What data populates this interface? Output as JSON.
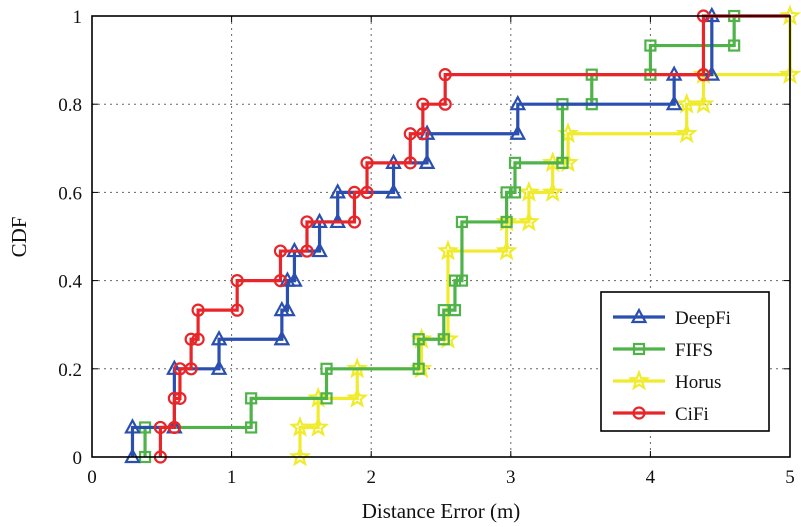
{
  "chart_data": {
    "type": "line",
    "xlabel": "Distance Error (m)",
    "ylabel": "CDF",
    "xlim": [
      0,
      5
    ],
    "ylim": [
      0,
      1
    ],
    "x_ticks": [
      "0",
      "1",
      "2",
      "3",
      "4",
      "5"
    ],
    "y_ticks": [
      "0",
      "0.2",
      "0.4",
      "0.6",
      "0.8",
      "1"
    ],
    "grid": true,
    "legend_position": "bottom-right",
    "series": [
      {
        "name": "DeepFi",
        "color": "#2a4faf",
        "marker": "triangle",
        "x": [
          0.29,
          0.59,
          0.91,
          1.36,
          1.4,
          1.45,
          1.63,
          1.76,
          2.16,
          2.4,
          3.05,
          4.17,
          4.44
        ],
        "y": [
          0.067,
          0.2,
          0.267,
          0.333,
          0.4,
          0.467,
          0.533,
          0.6,
          0.667,
          0.733,
          0.8,
          0.867,
          1.0
        ]
      },
      {
        "name": "FIFS",
        "color": "#4fb34a",
        "marker": "square",
        "x": [
          0.38,
          1.14,
          1.68,
          2.34,
          2.52,
          2.6,
          2.65,
          2.97,
          3.03,
          3.37,
          3.58,
          4.0,
          4.6
        ],
        "y": [
          0.067,
          0.133,
          0.2,
          0.267,
          0.333,
          0.4,
          0.533,
          0.6,
          0.667,
          0.8,
          0.867,
          0.933,
          1.0
        ]
      },
      {
        "name": "Horus",
        "color": "#f0eb2c",
        "marker": "star",
        "x": [
          1.49,
          1.62,
          1.9,
          2.36,
          2.55,
          2.97,
          3.13,
          3.3,
          3.41,
          4.26,
          4.38,
          5.0
        ],
        "y": [
          0.067,
          0.133,
          0.2,
          0.267,
          0.467,
          0.533,
          0.6,
          0.667,
          0.733,
          0.8,
          0.867,
          1.0
        ]
      },
      {
        "name": "CiFi",
        "color": "#e8262a",
        "marker": "circle",
        "x": [
          0.49,
          0.59,
          0.63,
          0.71,
          0.76,
          1.04,
          1.35,
          1.54,
          1.88,
          1.97,
          2.28,
          2.37,
          2.53,
          4.38
        ],
        "y": [
          0.067,
          0.133,
          0.2,
          0.267,
          0.333,
          0.4,
          0.467,
          0.533,
          0.6,
          0.667,
          0.733,
          0.8,
          0.867,
          1.0
        ]
      }
    ]
  }
}
